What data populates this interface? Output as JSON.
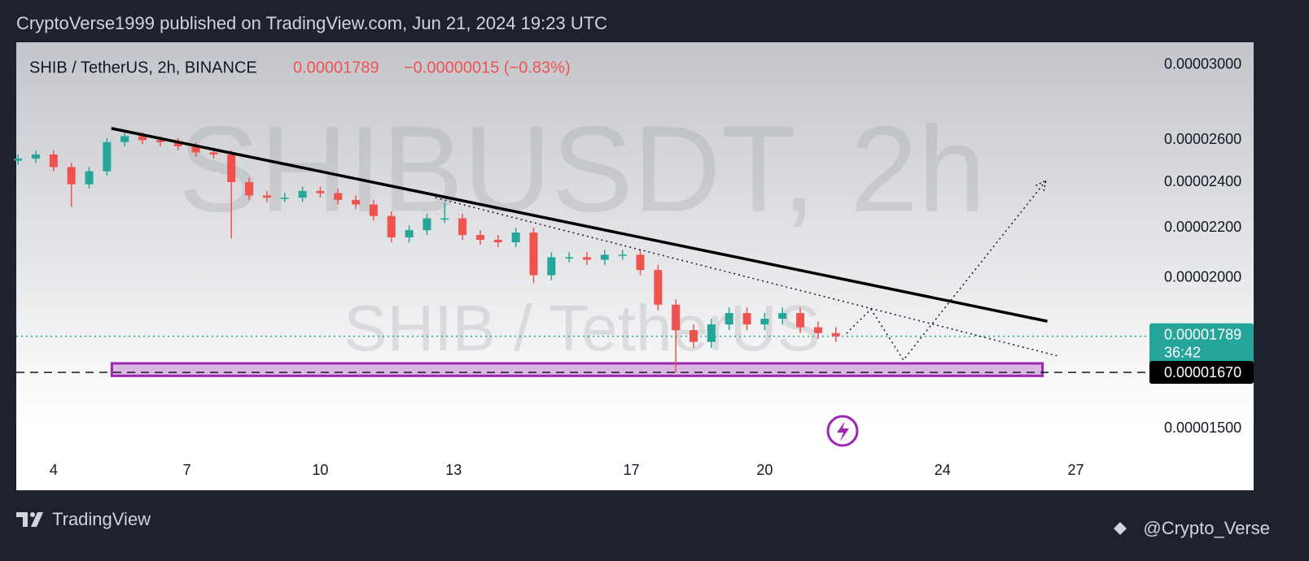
{
  "header": {
    "text": "CryptoVerse1999 published on TradingView.com, Jun 21, 2024 19:23 UTC"
  },
  "chart_data": {
    "type": "candlestick",
    "symbol": "SHIB / TetherUS, 2h, BINANCE",
    "last_price": {
      "value": 1.789e-05,
      "label": "0.00001789"
    },
    "change": "−0.00000015 (−0.83%)",
    "countdown": "36:42",
    "watermark": [
      "SHIBUSDT, 2h",
      "SHIB / TetherUS"
    ],
    "up_color": "#26a69a",
    "down_color": "#ef5350",
    "log_scale": true,
    "xlim": [
      3.16,
      28.62
    ],
    "ylim": [
      1.415e-05,
      3.133e-05
    ],
    "xticks": [
      4,
      7,
      10,
      13,
      17,
      20,
      24,
      27
    ],
    "yticks": [
      {
        "value": 3e-05,
        "label": "0.00003000"
      },
      {
        "value": 2.6e-05,
        "label": "0.00002600"
      },
      {
        "value": 2.4e-05,
        "label": "0.00002400"
      },
      {
        "value": 2.2e-05,
        "label": "0.00002200"
      },
      {
        "value": 2e-05,
        "label": "0.00002000"
      },
      {
        "value": 1.5e-05,
        "label": "0.00001500"
      }
    ],
    "x": [
      3.2,
      3.6,
      4.0,
      4.4,
      4.8,
      5.2,
      5.6,
      6.0,
      6.4,
      6.8,
      7.2,
      7.6,
      8.0,
      8.4,
      8.8,
      9.2,
      9.6,
      10.0,
      10.4,
      10.8,
      11.2,
      11.6,
      12.0,
      12.4,
      12.8,
      13.2,
      13.6,
      14.0,
      14.4,
      14.8,
      15.2,
      15.6,
      16.0,
      16.4,
      16.8,
      17.2,
      17.6,
      18.0,
      18.4,
      18.8,
      19.2,
      19.6,
      20.0,
      20.4,
      20.8,
      21.2,
      21.6
    ],
    "open": [
      2.5e-05,
      2.51e-05,
      2.53e-05,
      2.47e-05,
      2.39e-05,
      2.45e-05,
      2.59e-05,
      2.62e-05,
      2.6e-05,
      2.59e-05,
      2.57e-05,
      2.54e-05,
      2.53e-05,
      2.4e-05,
      2.34e-05,
      2.33e-05,
      2.33e-05,
      2.36e-05,
      2.35e-05,
      2.32e-05,
      2.3e-05,
      2.25e-05,
      2.16e-05,
      2.19e-05,
      2.24e-05,
      2.24e-05,
      2.17e-05,
      2.15e-05,
      2.14e-05,
      2.18e-05,
      2.01e-05,
      2.08e-05,
      2.08e-05,
      2.07e-05,
      2.09e-05,
      2.09e-05,
      2.03e-05,
      1.9e-05,
      1.81e-05,
      1.77e-05,
      1.83e-05,
      1.87e-05,
      1.83e-05,
      1.85e-05,
      1.87e-05,
      1.82e-05,
      1.8e-05
    ],
    "high": [
      2.53e-05,
      2.55e-05,
      2.55e-05,
      2.49e-05,
      2.47e-05,
      2.61e-05,
      2.64e-05,
      2.64e-05,
      2.62e-05,
      2.61e-05,
      2.59e-05,
      2.56e-05,
      2.55e-05,
      2.42e-05,
      2.36e-05,
      2.35e-05,
      2.38e-05,
      2.38e-05,
      2.37e-05,
      2.34e-05,
      2.32e-05,
      2.27e-05,
      2.21e-05,
      2.26e-05,
      2.31e-05,
      2.26e-05,
      2.19e-05,
      2.17e-05,
      2.2e-05,
      2.2e-05,
      2.1e-05,
      2.1e-05,
      2.1e-05,
      2.11e-05,
      2.11e-05,
      2.11e-05,
      2.05e-05,
      1.92e-05,
      1.83e-05,
      1.85e-05,
      1.89e-05,
      1.89e-05,
      1.87e-05,
      1.89e-05,
      1.89e-05,
      1.84e-05,
      1.82e-05
    ],
    "low": [
      2.48e-05,
      2.49e-05,
      2.45e-05,
      2.29e-05,
      2.37e-05,
      2.43e-05,
      2.57e-05,
      2.58e-05,
      2.57e-05,
      2.55e-05,
      2.52e-05,
      2.51e-05,
      2.156e-05,
      2.32e-05,
      2.31e-05,
      2.31e-05,
      2.31e-05,
      2.33e-05,
      2.3e-05,
      2.28e-05,
      2.23e-05,
      2.14e-05,
      2.14e-05,
      2.17e-05,
      2.22e-05,
      2.15e-05,
      2.13e-05,
      2.12e-05,
      2.12e-05,
      1.98e-05,
      1.99e-05,
      2.06e-05,
      2.05e-05,
      2.05e-05,
      2.07e-05,
      2.01e-05,
      1.88e-05,
      1.67e-05,
      1.75e-05,
      1.75e-05,
      1.81e-05,
      1.81e-05,
      1.81e-05,
      1.83e-05,
      1.8e-05,
      1.78e-05,
      1.77e-05
    ],
    "close": [
      2.51e-05,
      2.53e-05,
      2.47e-05,
      2.39e-05,
      2.45e-05,
      2.59e-05,
      2.62e-05,
      2.6e-05,
      2.59e-05,
      2.57e-05,
      2.54e-05,
      2.53e-05,
      2.4e-05,
      2.34e-05,
      2.33e-05,
      2.33e-05,
      2.36e-05,
      2.35e-05,
      2.32e-05,
      2.3e-05,
      2.25e-05,
      2.16e-05,
      2.19e-05,
      2.24e-05,
      2.24e-05,
      2.17e-05,
      2.15e-05,
      2.14e-05,
      2.18e-05,
      2.01e-05,
      2.08e-05,
      2.08e-05,
      2.07e-05,
      2.09e-05,
      2.09e-05,
      2.03e-05,
      1.9e-05,
      1.81e-05,
      1.77e-05,
      1.83e-05,
      1.87e-05,
      1.83e-05,
      1.85e-05,
      1.87e-05,
      1.82e-05,
      1.8e-05,
      1.789e-05
    ],
    "support": {
      "price": {
        "value": 1.67e-05,
        "label": "0.00001670"
      },
      "box": {
        "x": [
          5.31,
          26.25
        ],
        "y": [
          1.659e-05,
          1.699e-05
        ]
      },
      "color": "#9c27b0"
    },
    "trendline": {
      "x": [
        5.3,
        26.36
      ],
      "y": [
        2.659e-05,
        1.841e-05
      ]
    },
    "dotted_line": {
      "x": [
        12.59,
        26.6
      ],
      "y": [
        2.33e-05,
        1.723e-05
      ]
    },
    "projection": {
      "x": [
        21.84,
        22.39,
        23.12,
        26.33
      ],
      "y": [
        1.799e-05,
        1.884e-05,
        1.71e-05,
        2.407e-05
      ]
    }
  },
  "footer": {
    "brand": "TradingView",
    "author": "@Crypto_Verse"
  }
}
